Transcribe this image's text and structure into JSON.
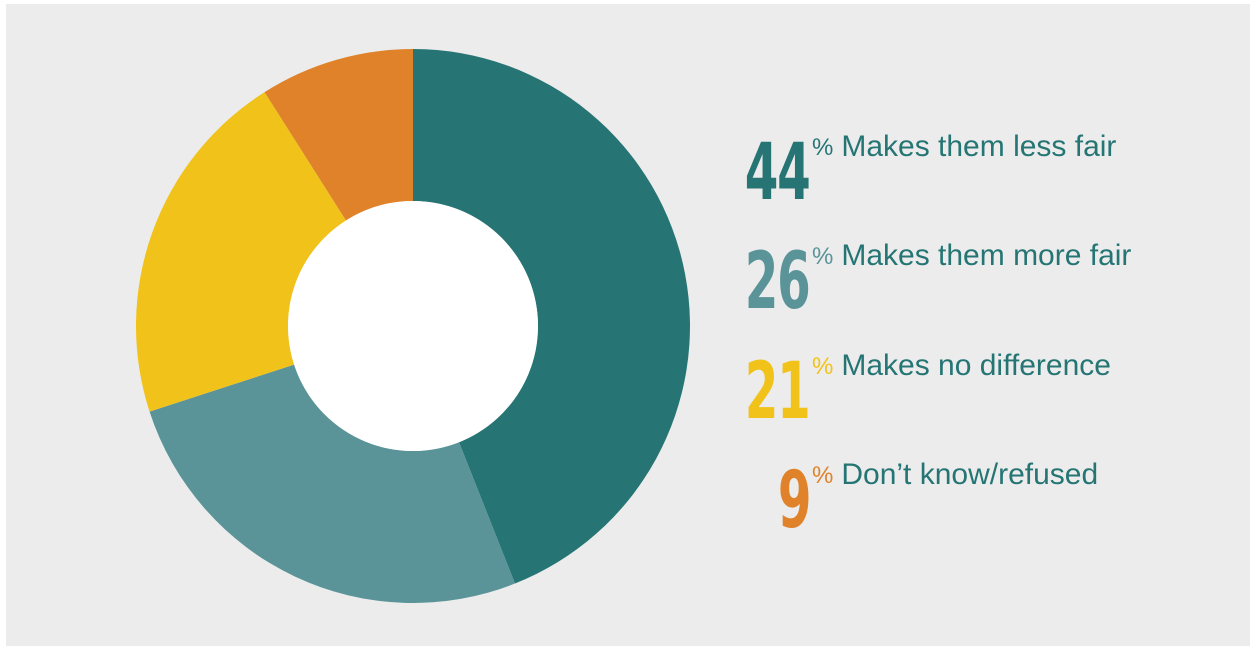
{
  "chart_data": {
    "type": "pie",
    "donut": true,
    "categories": [
      "Makes them less fair",
      "Makes them more fair",
      "Makes no difference",
      "Don’t know/refused"
    ],
    "values": [
      44,
      26,
      21,
      9
    ],
    "value_labels": [
      "44",
      "26",
      "21",
      "9"
    ],
    "percent_symbol": "%",
    "colors": [
      "#267574",
      "#5a9499",
      "#f1c21a",
      "#df8229"
    ],
    "label_color": "#257574",
    "start_angle": "top",
    "direction": "clockwise",
    "legend_position": "right"
  }
}
